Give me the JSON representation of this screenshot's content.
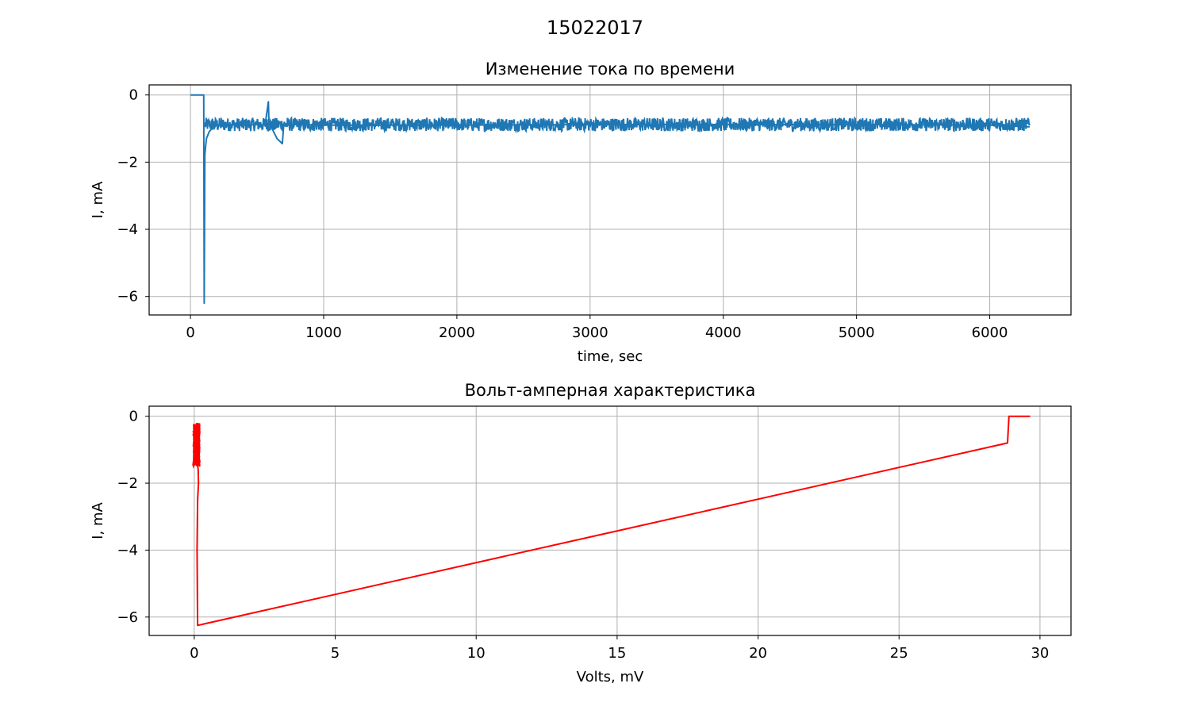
{
  "suptitle": "15022017",
  "chart_data": [
    {
      "type": "line",
      "title": "Изменение тока по времени",
      "xlabel": "time, sec",
      "ylabel": "I, mA",
      "xlim": [
        -310,
        6610
      ],
      "ylim": [
        -6.55,
        0.3
      ],
      "xticks": [
        0,
        1000,
        2000,
        3000,
        4000,
        5000,
        6000
      ],
      "xtick_labels": [
        "0",
        "1000",
        "2000",
        "3000",
        "4000",
        "5000",
        "6000"
      ],
      "yticks": [
        0,
        -2,
        -4,
        -6
      ],
      "ytick_labels": [
        "0",
        "−2",
        "−4",
        "−6"
      ],
      "grid": true,
      "color": "#1f77b4",
      "noise_band": {
        "x_start": 110,
        "x_end": 6300,
        "center": -0.88,
        "amplitude": 0.2
      },
      "series": [
        {
          "x": [
            0,
            100,
            103,
            106,
            108,
            112,
            120,
            140,
            170,
            200,
            300,
            400,
            500,
            560,
            585,
            590,
            600,
            650,
            690,
            700,
            710,
            800,
            1000,
            2000,
            3000,
            4000,
            5000,
            6000,
            6300
          ],
          "y": [
            0,
            0,
            -6.2,
            -3.5,
            -1.8,
            -1.6,
            -1.3,
            -1.1,
            -0.95,
            -0.9,
            -0.88,
            -0.9,
            -0.88,
            -0.9,
            -0.2,
            -0.9,
            -0.9,
            -1.3,
            -1.45,
            -0.9,
            -0.88,
            -0.88,
            -0.9,
            -0.9,
            -0.88,
            -0.88,
            -0.88,
            -0.9,
            -0.95
          ]
        }
      ]
    },
    {
      "type": "line",
      "title": "Вольт-амперная характеристика",
      "xlabel": "Volts, mV",
      "ylabel": "I, mA",
      "xlim": [
        -1.6,
        31.1
      ],
      "ylim": [
        -6.55,
        0.3
      ],
      "xticks": [
        0,
        5,
        10,
        15,
        20,
        25,
        30
      ],
      "xtick_labels": [
        "0",
        "5",
        "10",
        "15",
        "20",
        "25",
        "30"
      ],
      "yticks": [
        0,
        -2,
        -4,
        -6
      ],
      "ytick_labels": [
        "0",
        "−2",
        "−4",
        "−6"
      ],
      "grid": true,
      "color": "#ff0000",
      "series": [
        {
          "x": [
            29.65,
            28.95,
            28.9,
            28.85,
            0.12,
            0.1,
            0.12,
            0.15,
            0.14,
            0.1,
            0.08
          ],
          "y": [
            0,
            0,
            0,
            -0.8,
            -6.25,
            -4.0,
            -2.5,
            -2.0,
            -1.6,
            -1.3,
            -1.0
          ]
        }
      ],
      "cluster": {
        "x_center": 0.08,
        "x_spread": 0.12,
        "y_min": -1.5,
        "y_max": -0.2
      }
    }
  ]
}
